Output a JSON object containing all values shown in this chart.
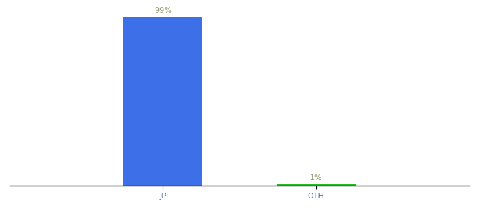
{
  "categories": [
    "JP",
    "OTH"
  ],
  "values": [
    99,
    1
  ],
  "bar_colors": [
    "#3d6fe8",
    "#22bb22"
  ],
  "labels": [
    "99%",
    "1%"
  ],
  "background_color": "#ffffff",
  "ylim": [
    0,
    105
  ],
  "label_color": "#999977",
  "label_fontsize": 8,
  "tick_fontsize": 8,
  "tick_color": "#4466bb"
}
